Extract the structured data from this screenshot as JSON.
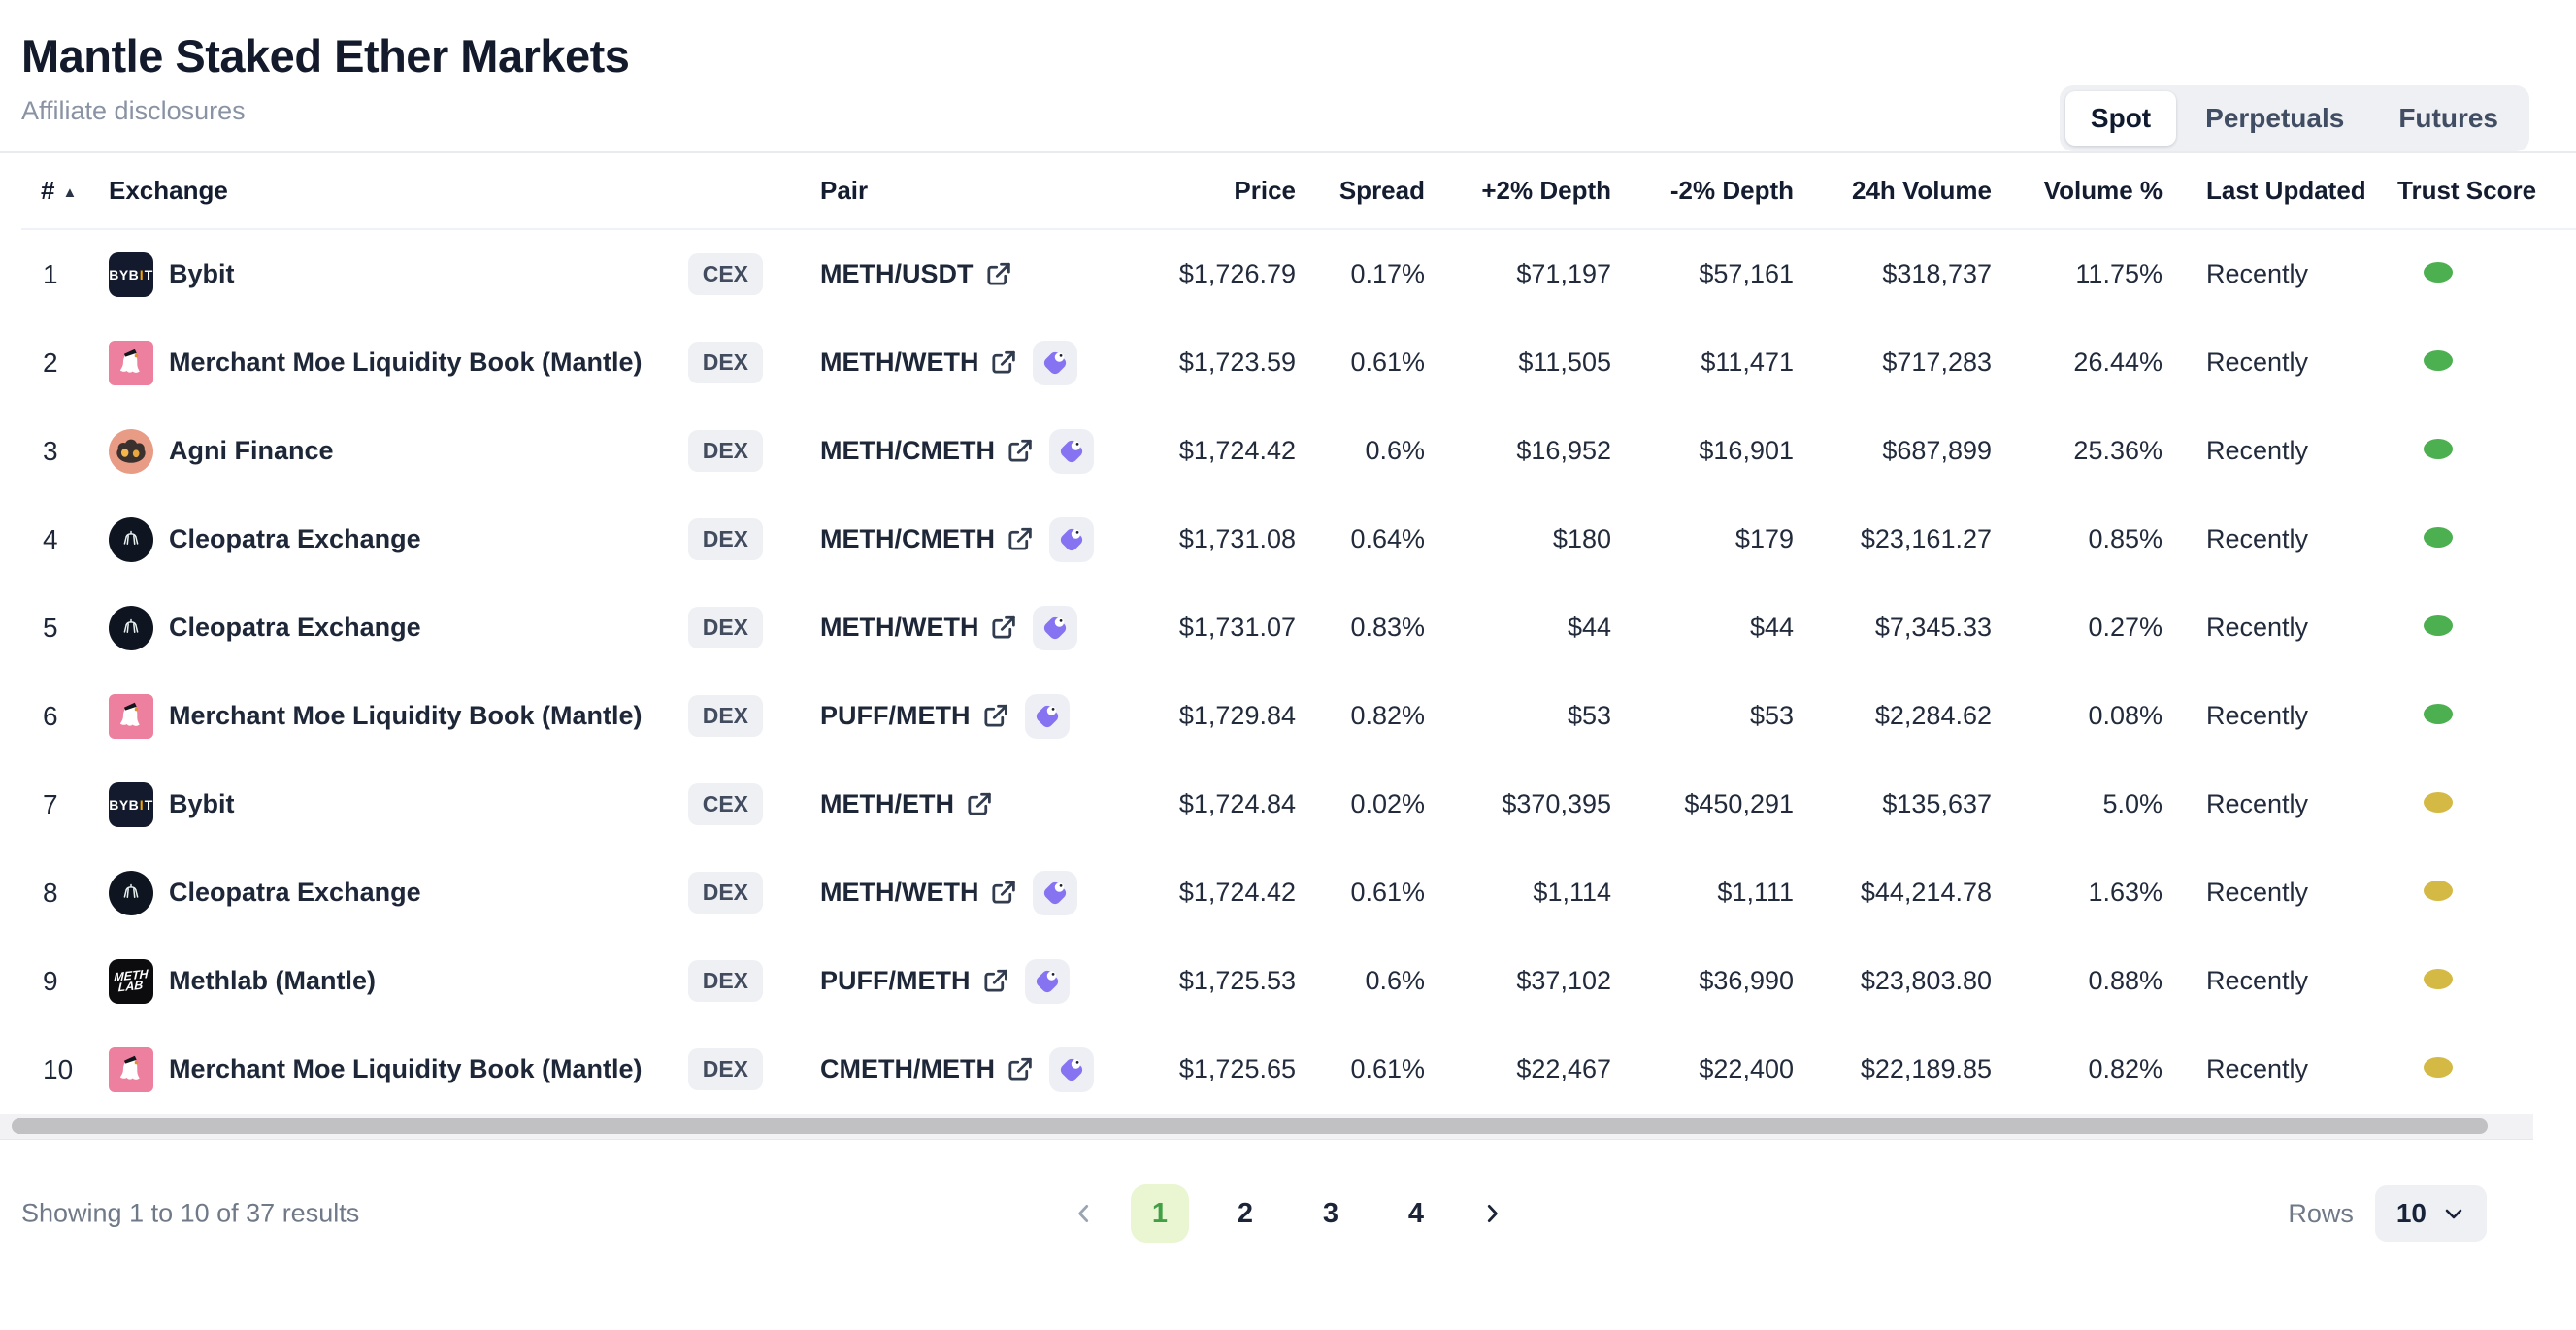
{
  "page": {
    "title": "Mantle Staked Ether Markets",
    "subtitle": "Affiliate disclosures"
  },
  "tabs": [
    {
      "label": "Spot",
      "active": true
    },
    {
      "label": "Perpetuals",
      "active": false
    },
    {
      "label": "Futures",
      "active": false
    }
  ],
  "table": {
    "columns": [
      "#",
      "Exchange",
      "Pair",
      "Price",
      "Spread",
      "+2% Depth",
      "-2% Depth",
      "24h Volume",
      "Volume %",
      "Last Updated",
      "Trust Score"
    ],
    "rows": [
      {
        "rank": "1",
        "exchange": "Bybit",
        "type": "CEX",
        "logo": "bybit",
        "pair": "METH/USDT",
        "gecko": false,
        "price": "$1,726.79",
        "spread": "0.17%",
        "depth_plus": "$71,197",
        "depth_minus": "$57,161",
        "volume_24h": "$318,737",
        "volume_pct": "11.75%",
        "updated": "Recently",
        "trust": "green"
      },
      {
        "rank": "2",
        "exchange": "Merchant Moe Liquidity Book (Mantle)",
        "type": "DEX",
        "logo": "moe",
        "pair": "METH/WETH",
        "gecko": true,
        "price": "$1,723.59",
        "spread": "0.61%",
        "depth_plus": "$11,505",
        "depth_minus": "$11,471",
        "volume_24h": "$717,283",
        "volume_pct": "26.44%",
        "updated": "Recently",
        "trust": "green"
      },
      {
        "rank": "3",
        "exchange": "Agni Finance",
        "type": "DEX",
        "logo": "agni",
        "pair": "METH/CMETH",
        "gecko": true,
        "price": "$1,724.42",
        "spread": "0.6%",
        "depth_plus": "$16,952",
        "depth_minus": "$16,901",
        "volume_24h": "$687,899",
        "volume_pct": "25.36%",
        "updated": "Recently",
        "trust": "green"
      },
      {
        "rank": "4",
        "exchange": "Cleopatra Exchange",
        "type": "DEX",
        "logo": "cleo",
        "pair": "METH/CMETH",
        "gecko": true,
        "price": "$1,731.08",
        "spread": "0.64%",
        "depth_plus": "$180",
        "depth_minus": "$179",
        "volume_24h": "$23,161.27",
        "volume_pct": "0.85%",
        "updated": "Recently",
        "trust": "green"
      },
      {
        "rank": "5",
        "exchange": "Cleopatra Exchange",
        "type": "DEX",
        "logo": "cleo",
        "pair": "METH/WETH",
        "gecko": true,
        "price": "$1,731.07",
        "spread": "0.83%",
        "depth_plus": "$44",
        "depth_minus": "$44",
        "volume_24h": "$7,345.33",
        "volume_pct": "0.27%",
        "updated": "Recently",
        "trust": "green"
      },
      {
        "rank": "6",
        "exchange": "Merchant Moe Liquidity Book (Mantle)",
        "type": "DEX",
        "logo": "moe",
        "pair": "PUFF/METH",
        "gecko": true,
        "price": "$1,729.84",
        "spread": "0.82%",
        "depth_plus": "$53",
        "depth_minus": "$53",
        "volume_24h": "$2,284.62",
        "volume_pct": "0.08%",
        "updated": "Recently",
        "trust": "green"
      },
      {
        "rank": "7",
        "exchange": "Bybit",
        "type": "CEX",
        "logo": "bybit",
        "pair": "METH/ETH",
        "gecko": false,
        "price": "$1,724.84",
        "spread": "0.02%",
        "depth_plus": "$370,395",
        "depth_minus": "$450,291",
        "volume_24h": "$135,637",
        "volume_pct": "5.0%",
        "updated": "Recently",
        "trust": "yellow"
      },
      {
        "rank": "8",
        "exchange": "Cleopatra Exchange",
        "type": "DEX",
        "logo": "cleo",
        "pair": "METH/WETH",
        "gecko": true,
        "price": "$1,724.42",
        "spread": "0.61%",
        "depth_plus": "$1,114",
        "depth_minus": "$1,111",
        "volume_24h": "$44,214.78",
        "volume_pct": "1.63%",
        "updated": "Recently",
        "trust": "yellow"
      },
      {
        "rank": "9",
        "exchange": "Methlab (Mantle)",
        "type": "DEX",
        "logo": "methlab",
        "pair": "PUFF/METH",
        "gecko": true,
        "price": "$1,725.53",
        "spread": "0.6%",
        "depth_plus": "$37,102",
        "depth_minus": "$36,990",
        "volume_24h": "$23,803.80",
        "volume_pct": "0.88%",
        "updated": "Recently",
        "trust": "yellow"
      },
      {
        "rank": "10",
        "exchange": "Merchant Moe Liquidity Book (Mantle)",
        "type": "DEX",
        "logo": "moe",
        "pair": "CMETH/METH",
        "gecko": true,
        "price": "$1,725.65",
        "spread": "0.61%",
        "depth_plus": "$22,467",
        "depth_minus": "$22,400",
        "volume_24h": "$22,189.85",
        "volume_pct": "0.82%",
        "updated": "Recently",
        "trust": "yellow"
      }
    ]
  },
  "logos": {
    "bybit": {
      "p0": "BYB",
      "p1": "I",
      "p2": "T"
    },
    "methlab": {
      "l0": "METH",
      "l1": "LAB"
    }
  },
  "footer": {
    "summary": "Showing 1 to 10 of 37 results",
    "pages": [
      "1",
      "2",
      "3",
      "4"
    ],
    "active_page": "1",
    "rows_label": "Rows",
    "rows_value": "10"
  },
  "colors": {
    "trust_green": "#4caf50",
    "trust_yellow": "#d4ba45",
    "active_page_bg": "#e9f6d1",
    "active_page_text": "#41a045",
    "gecko_purple": "#8673f1",
    "badge_bg": "#eef0f4",
    "bybit_orange": "#f7a600",
    "moe_pink": "#ee809f",
    "text_dark": "#1e2738",
    "text_gray": "#8a93a3"
  }
}
